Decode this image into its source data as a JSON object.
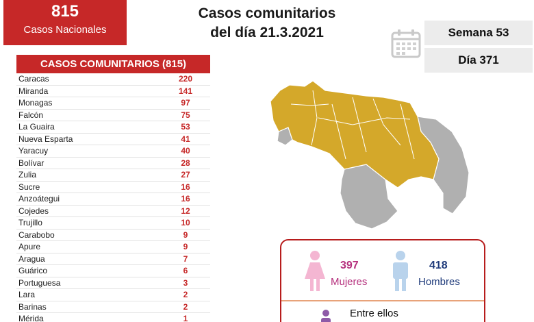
{
  "national": {
    "count": "815",
    "label": "Casos Nacionales"
  },
  "title": {
    "line1": "Casos comunitarios",
    "line2": "del día 21.3.2021"
  },
  "week": "Semana 53",
  "day": "Día 371",
  "table": {
    "header": "CASOS COMUNITARIOS (815)",
    "rows": [
      {
        "state": "Caracas",
        "value": "220"
      },
      {
        "state": "Miranda",
        "value": "141"
      },
      {
        "state": "Monagas",
        "value": "97"
      },
      {
        "state": "Falcón",
        "value": "75"
      },
      {
        "state": "La Guaira",
        "value": "53"
      },
      {
        "state": "Nueva Esparta",
        "value": "41"
      },
      {
        "state": "Yaracuy",
        "value": "40"
      },
      {
        "state": "Bolívar",
        "value": "28"
      },
      {
        "state": "Zulia",
        "value": "27"
      },
      {
        "state": "Sucre",
        "value": "16"
      },
      {
        "state": "Anzoátegui",
        "value": "16"
      },
      {
        "state": "Cojedes",
        "value": "12"
      },
      {
        "state": "Trujillo",
        "value": "10"
      },
      {
        "state": "Carabobo",
        "value": "9"
      },
      {
        "state": "Apure",
        "value": "9"
      },
      {
        "state": "Aragua",
        "value": "7"
      },
      {
        "state": "Guárico",
        "value": "6"
      },
      {
        "state": "Portuguesa",
        "value": "3"
      },
      {
        "state": "Lara",
        "value": "2"
      },
      {
        "state": "Barinas",
        "value": "2"
      },
      {
        "state": "Mérida",
        "value": "1"
      }
    ]
  },
  "gender": {
    "female_count": "397",
    "female_label": "Mujeres",
    "male_count": "418",
    "male_label": "Hombres",
    "between": "Entre ellos"
  },
  "colors": {
    "accent": "#c62828",
    "map_highlight": "#d4a82a",
    "map_base": "#b0b0b0"
  },
  "icons": [
    "calendar-icon",
    "female-icon",
    "male-icon"
  ]
}
